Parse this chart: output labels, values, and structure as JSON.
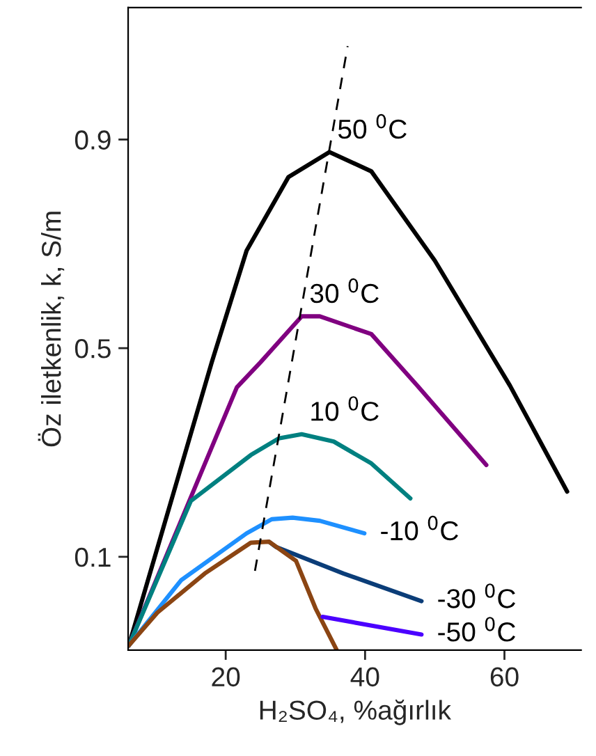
{
  "chart_data": {
    "type": "line",
    "xlabel": "H₂SO₄, %ağırlık",
    "ylabel": "Öz iletkenlik, k, S/m",
    "xlim": [
      6,
      71
    ],
    "ylim": [
      -0.079,
      1.153
    ],
    "xticks": [
      20,
      40,
      60
    ],
    "yticks": [
      0.1,
      0.5,
      0.9
    ],
    "grid": false,
    "legend": false,
    "series": [
      {
        "name": "50 $^{0}$C",
        "color": "#000000",
        "x": [
          6.1,
          18.0,
          23.0,
          29.0,
          34.9,
          40.9,
          50.0,
          60.8,
          69.0
        ],
        "values": [
          -0.07,
          0.473,
          0.687,
          0.828,
          0.876,
          0.839,
          0.668,
          0.428,
          0.225
        ]
      },
      {
        "name": "30 $^{0}$C",
        "color": "#800080",
        "x": [
          6.1,
          21.6,
          25.0,
          30.9,
          33.5,
          40.9,
          47.5,
          57.4
        ],
        "values": [
          -0.07,
          0.425,
          0.473,
          0.561,
          0.561,
          0.527,
          0.428,
          0.276
        ]
      },
      {
        "name": "10 $^{0}$C",
        "color": "#008080",
        "x": [
          6.1,
          15.0,
          23.6,
          27.6,
          30.9,
          35.5,
          40.9,
          46.5
        ],
        "values": [
          -0.07,
          0.207,
          0.295,
          0.327,
          0.335,
          0.321,
          0.279,
          0.212
        ]
      },
      {
        "name": "-10 $^{0}$C",
        "color": "#1e90ff",
        "x": [
          6.1,
          13.6,
          23.0,
          26.6,
          29.6,
          33.5,
          39.9
        ],
        "values": [
          -0.07,
          0.055,
          0.145,
          0.172,
          0.175,
          0.169,
          0.145
        ]
      },
      {
        "name": "-30 $^{0}$C",
        "color": "#0b3d78",
        "x": [
          26.2,
          27.2,
          36.9,
          48.1
        ],
        "values": [
          0.129,
          0.119,
          0.068,
          0.015
        ]
      },
      {
        "color": "#8b4513",
        "x": [
          6.1,
          10.2,
          17.0,
          23.6,
          26.2,
          30.1,
          32.9,
          35.9
        ],
        "values": [
          -0.07,
          -0.007,
          0.068,
          0.127,
          0.129,
          0.092,
          0.001,
          -0.078
        ]
      },
      {
        "name": "-50 $^{0}$C",
        "color": "#4b00ff",
        "x": [
          33.9,
          48.1
        ],
        "values": [
          -0.015,
          -0.049
        ]
      },
      {
        "color": "#000000",
        "line_style": "dashed",
        "x": [
          24.2,
          37.5
        ],
        "values": [
          0.073,
          1.079
        ]
      }
    ]
  }
}
